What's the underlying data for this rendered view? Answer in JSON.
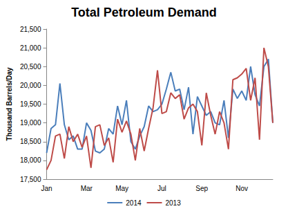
{
  "chart_data": {
    "type": "line",
    "title": "Total Petroleum Demand",
    "y_label": "Thousand Barrels/Day",
    "categories": [
      "Jan",
      null,
      null,
      null,
      null,
      null,
      null,
      null,
      null,
      "Mar",
      null,
      null,
      null,
      null,
      null,
      null,
      null,
      "May",
      null,
      null,
      null,
      null,
      null,
      null,
      null,
      null,
      "Jul",
      null,
      null,
      null,
      null,
      null,
      null,
      null,
      null,
      "Sep",
      null,
      null,
      null,
      null,
      null,
      null,
      null,
      null,
      "Nov",
      null,
      null,
      null,
      null,
      null,
      null,
      null
    ],
    "series": [
      {
        "name": "2014",
        "color": "#4a7ebb",
        "values": [
          18200,
          18850,
          18950,
          20050,
          18950,
          18550,
          18650,
          18300,
          18300,
          19000,
          18800,
          18250,
          18200,
          18300,
          18850,
          18700,
          19450,
          18950,
          19600,
          18500,
          18300,
          18650,
          18900,
          19450,
          19300,
          19350,
          19500,
          19900,
          20350,
          19850,
          19900,
          19350,
          19950,
          18700,
          19700,
          19450,
          19200,
          19300,
          19000,
          18950,
          19600,
          18600,
          19900,
          19650,
          19850,
          19600,
          20500,
          19750,
          19450,
          20500,
          20700,
          19000
        ]
      },
      {
        "name": "2013",
        "color": "#be4b48",
        "values": [
          17750,
          18000,
          18650,
          18700,
          18050,
          18900,
          18500,
          18700,
          18350,
          18650,
          17800,
          18900,
          18950,
          18400,
          18600,
          17950,
          19100,
          18750,
          19050,
          18700,
          18000,
          18850,
          18250,
          18850,
          19400,
          20400,
          19250,
          19300,
          19800,
          19650,
          19750,
          19100,
          19400,
          19500,
          19300,
          18400,
          19800,
          19200,
          18700,
          19300,
          19000,
          18300,
          20150,
          20200,
          20300,
          20450,
          19600,
          20200,
          18550,
          21000,
          20500,
          19000
        ]
      }
    ],
    "ylim": [
      17500,
      21500
    ],
    "yticks": [
      {
        "value": 17500,
        "label": "17,500"
      },
      {
        "value": 18000,
        "label": "18,000"
      },
      {
        "value": 18500,
        "label": "18,500"
      },
      {
        "value": 19000,
        "label": "19,000"
      },
      {
        "value": 19500,
        "label": "19,500"
      },
      {
        "value": 20000,
        "label": "20,000"
      },
      {
        "value": 20500,
        "label": "20,500"
      },
      {
        "value": 21000,
        "label": "21,000"
      },
      {
        "value": 21500,
        "label": "21,500"
      }
    ],
    "grid": false,
    "legend": "bottom"
  }
}
